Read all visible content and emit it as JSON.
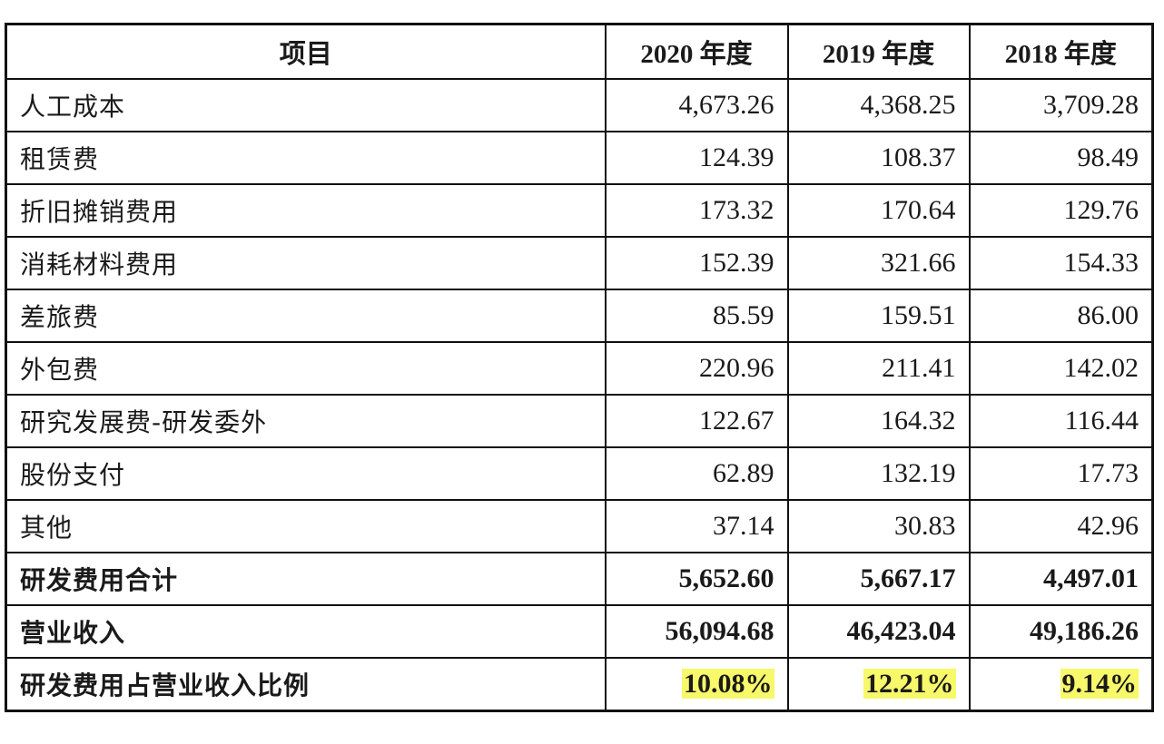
{
  "table": {
    "headers": [
      "项目",
      "2020 年度",
      "2019 年度",
      "2018 年度"
    ],
    "rows": [
      {
        "label": "人工成本",
        "values": [
          "4,673.26",
          "4,368.25",
          "3,709.28"
        ]
      },
      {
        "label": "租赁费",
        "values": [
          "124.39",
          "108.37",
          "98.49"
        ]
      },
      {
        "label": "折旧摊销费用",
        "values": [
          "173.32",
          "170.64",
          "129.76"
        ]
      },
      {
        "label": "消耗材料费用",
        "values": [
          "152.39",
          "321.66",
          "154.33"
        ]
      },
      {
        "label": "差旅费",
        "values": [
          "85.59",
          "159.51",
          "86.00"
        ]
      },
      {
        "label": "外包费",
        "values": [
          "220.96",
          "211.41",
          "142.02"
        ]
      },
      {
        "label": "研究发展费-研发委外",
        "values": [
          "122.67",
          "164.32",
          "116.44"
        ]
      },
      {
        "label": "股份支付",
        "values": [
          "62.89",
          "132.19",
          "17.73"
        ]
      },
      {
        "label": "其他",
        "values": [
          "37.14",
          "30.83",
          "42.96"
        ]
      },
      {
        "label": "研发费用合计",
        "values": [
          "5,652.60",
          "5,667.17",
          "4,497.01"
        ]
      },
      {
        "label": "营业收入",
        "values": [
          "56,094.68",
          "46,423.04",
          "49,186.26"
        ]
      },
      {
        "label": "研发费用占营业收入比例",
        "values": [
          "10.08%",
          "12.21%",
          "9.14%"
        ]
      }
    ]
  },
  "colors": {
    "highlight": "#f7f86a",
    "border": "#111111"
  }
}
